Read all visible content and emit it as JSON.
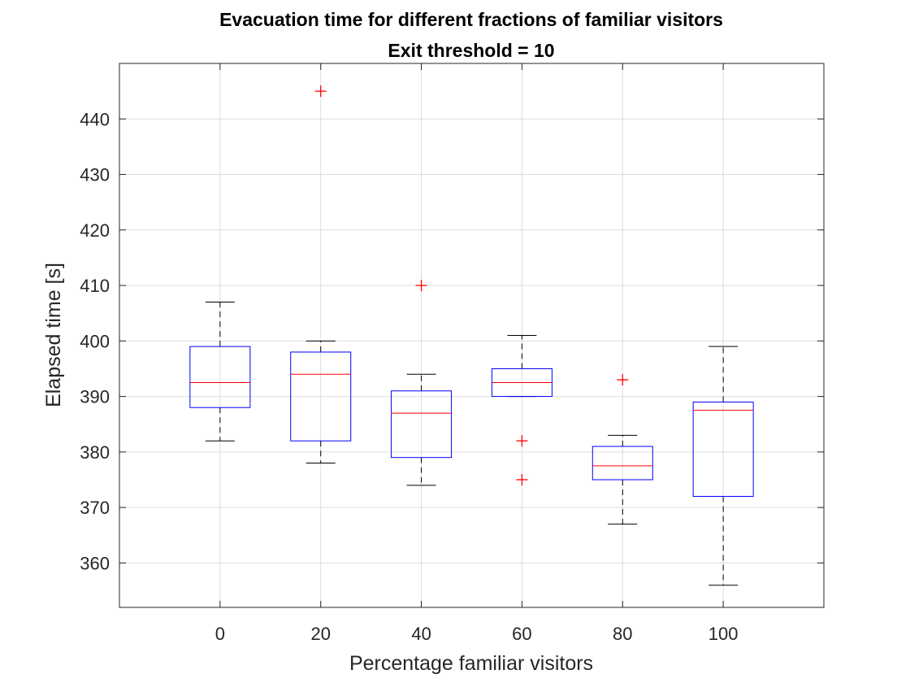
{
  "chart_data": {
    "type": "box",
    "title": "Evacuation time for different fractions of familiar visitors",
    "subtitle": "Exit threshold = 10",
    "xlabel": "Percentage familiar visitors",
    "ylabel": "Elapsed time [s]",
    "categories": [
      "0",
      "20",
      "40",
      "60",
      "80",
      "100"
    ],
    "ylim": [
      352,
      450
    ],
    "yticks": [
      360,
      370,
      380,
      390,
      400,
      410,
      420,
      430,
      440
    ],
    "ytick_labels": [
      "360",
      "370",
      "380",
      "390",
      "400",
      "410",
      "420",
      "430",
      "440"
    ],
    "grid": true,
    "boxes": [
      {
        "category": "0",
        "whisker_low": 382,
        "q1": 388,
        "median": 392.5,
        "q3": 399,
        "whisker_high": 407,
        "outliers": []
      },
      {
        "category": "20",
        "whisker_low": 378,
        "q1": 382,
        "median": 394,
        "q3": 398,
        "whisker_high": 400,
        "outliers": [
          445
        ]
      },
      {
        "category": "40",
        "whisker_low": 374,
        "q1": 379,
        "median": 387,
        "q3": 391,
        "whisker_high": 394,
        "outliers": [
          410
        ]
      },
      {
        "category": "60",
        "whisker_low": 390,
        "q1": 390,
        "median": 392.5,
        "q3": 395,
        "whisker_high": 401,
        "outliers": [
          382,
          375
        ]
      },
      {
        "category": "80",
        "whisker_low": 367,
        "q1": 375,
        "median": 377.5,
        "q3": 381,
        "whisker_high": 383,
        "outliers": [
          393
        ]
      },
      {
        "category": "100",
        "whisker_low": 356,
        "q1": 372,
        "median": 387.5,
        "q3": 389,
        "whisker_high": 399,
        "outliers": []
      }
    ],
    "colors": {
      "box": "#0000ff",
      "median": "#ff0000",
      "whisker": "#000000",
      "outlier": "#ff0000",
      "grid": "#dcdcdc",
      "axes": "#262626"
    }
  }
}
